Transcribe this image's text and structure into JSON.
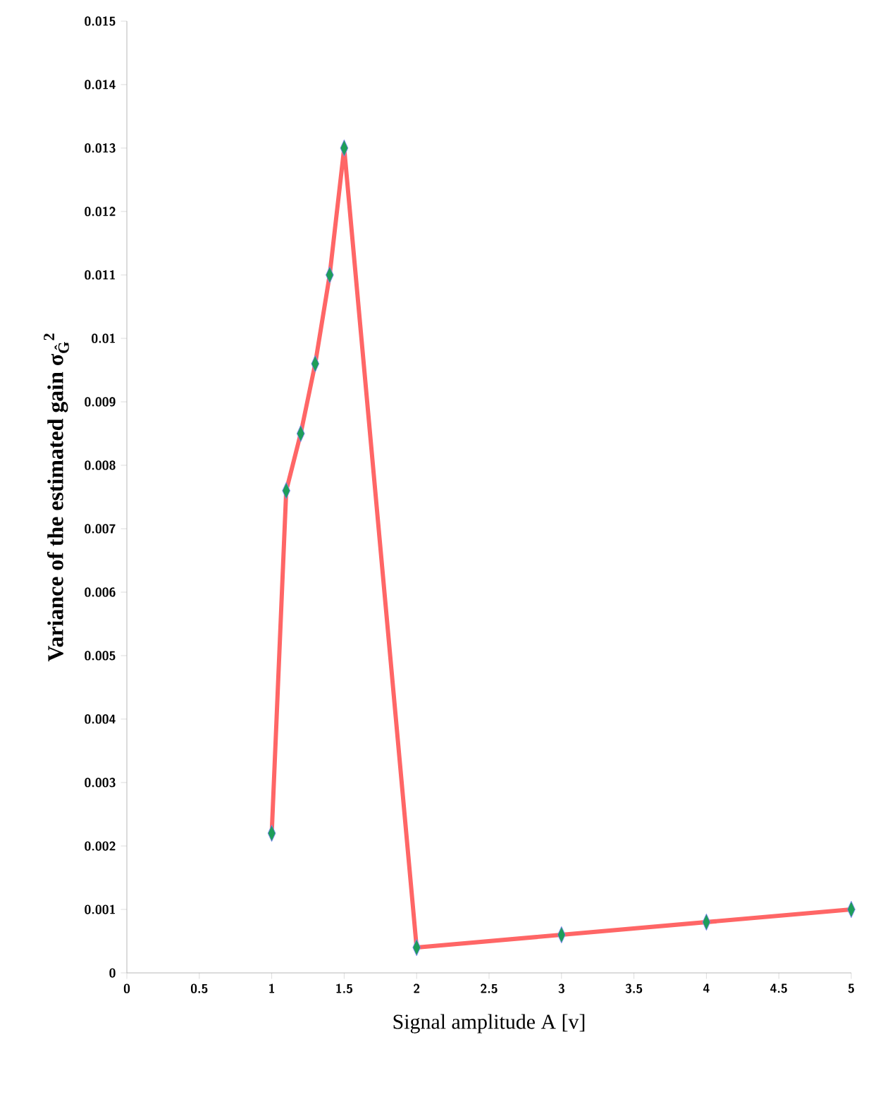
{
  "chart_data": {
    "type": "line",
    "xlabel": "Signal amplitude A [v]",
    "ylabel": "**Variance of the estimated gain σ$_{Ĝ}$$^{2}$**",
    "x": [
      1,
      1.1,
      1.2,
      1.3,
      1.4,
      1.5,
      2,
      3,
      4,
      5
    ],
    "series": [
      {
        "color": "#ff6666",
        "values": [
          0.0022,
          0.0076,
          0.0085,
          0.0096,
          0.011,
          0.013,
          0.0004,
          0.0006,
          0.0008,
          0.001
        ]
      }
    ],
    "marker": "diamond",
    "xlim": [
      0,
      5
    ],
    "xticks": [
      0,
      0.5,
      1,
      1.5,
      2,
      2.5,
      3,
      3.5,
      4,
      4.5,
      5
    ],
    "ylim": [
      0,
      0.015
    ],
    "yticks": [
      0,
      0.001,
      0.002,
      0.003,
      0.004,
      0.005,
      0.006,
      0.007,
      0.008,
      0.009,
      0.01,
      0.011,
      0.012,
      0.013,
      0.014,
      0.015
    ],
    "grid": false
  }
}
